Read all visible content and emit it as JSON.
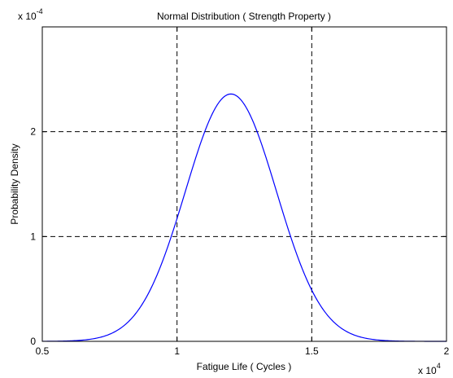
{
  "chart_data": {
    "type": "line",
    "title": "Normal Distribution ( Strength Property )",
    "xlabel": "Fatigue Life ( Cycles )",
    "ylabel": "Probability Density",
    "x_multiplier": "x 10",
    "x_multiplier_exp": "4",
    "y_multiplier": "x 10",
    "y_multiplier_exp": "-4",
    "xlim": [
      5000,
      20000
    ],
    "ylim": [
      0,
      0.0003
    ],
    "x_ticks": [
      5000,
      10000,
      15000,
      20000
    ],
    "x_tick_labels": [
      "0.5",
      "1",
      "1.5",
      "2"
    ],
    "y_ticks": [
      0,
      0.0001,
      0.0002
    ],
    "y_tick_labels": [
      "0",
      "1",
      "2"
    ],
    "grid": true,
    "grid_style": "dashed",
    "series": [
      {
        "color": "#0000ff",
        "distribution": "normal",
        "mean": 12000,
        "std": 1690,
        "peak": 0.000236
      }
    ]
  }
}
